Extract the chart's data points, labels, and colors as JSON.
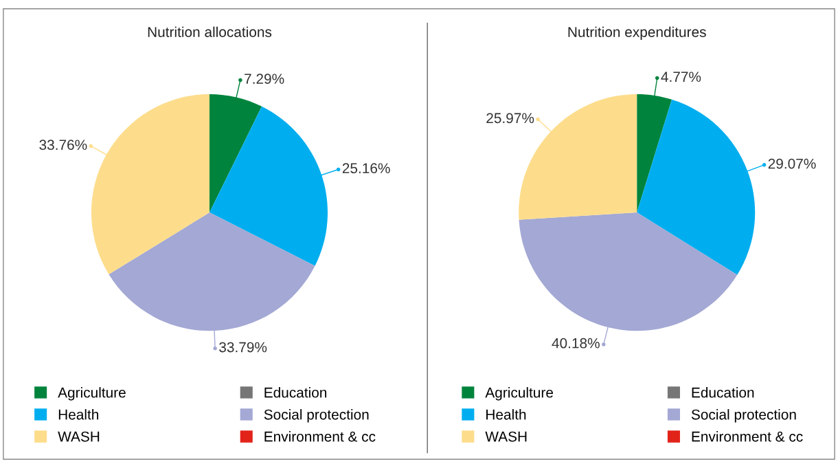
{
  "chart_data": [
    {
      "type": "pie",
      "title": "Nutrition allocations",
      "categories": [
        "Agriculture",
        "Education",
        "Health",
        "Social protection",
        "WASH",
        "Environment & cc"
      ],
      "values": [
        7.29,
        0,
        25.16,
        33.79,
        33.76,
        0
      ],
      "colors": [
        "#00843d",
        "#767676",
        "#00aeef",
        "#a3a8d4",
        "#fddd8c",
        "#e2231a"
      ],
      "value_labels": [
        "7.29%",
        null,
        "25.16%",
        "33.79%",
        "33.76%",
        null
      ],
      "legend": "bottom"
    },
    {
      "type": "pie",
      "title": "Nutrition expenditures",
      "categories": [
        "Agriculture",
        "Education",
        "Health",
        "Social protection",
        "WASH",
        "Environment & cc"
      ],
      "values": [
        4.77,
        0,
        29.07,
        40.18,
        25.97,
        0
      ],
      "colors": [
        "#00843d",
        "#767676",
        "#00aeef",
        "#a3a8d4",
        "#fddd8c",
        "#e2231a"
      ],
      "value_labels": [
        "4.77%",
        null,
        "29.07%",
        "40.18%",
        "25.97%",
        null
      ],
      "legend": "bottom"
    }
  ]
}
